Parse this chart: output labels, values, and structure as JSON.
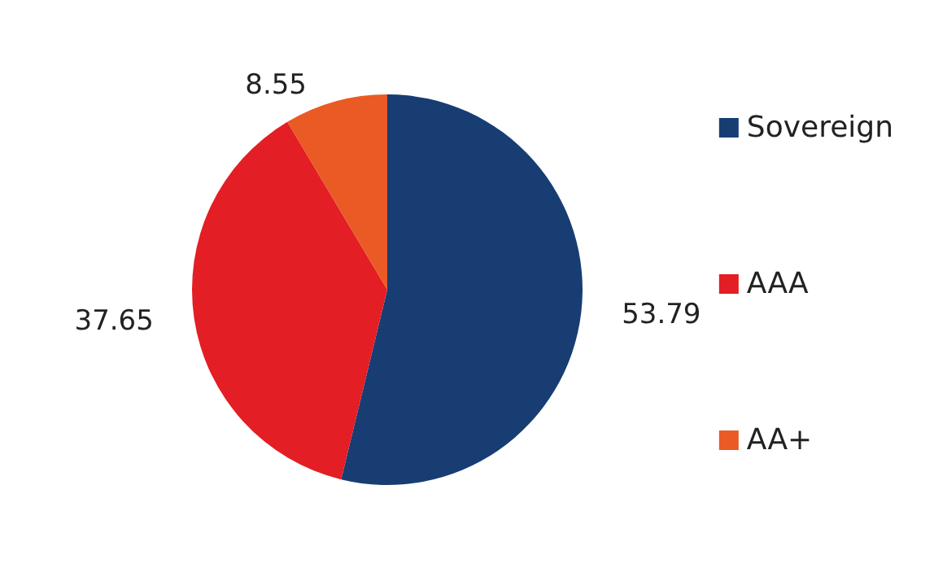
{
  "chart_data": {
    "type": "pie",
    "categories": [
      "Sovereign",
      "AAA",
      "AA+"
    ],
    "values": [
      53.79,
      37.65,
      8.55
    ],
    "colors": [
      "#173d73",
      "#e31e24",
      "#ea5a24"
    ],
    "data_labels": true,
    "legend": "right"
  }
}
